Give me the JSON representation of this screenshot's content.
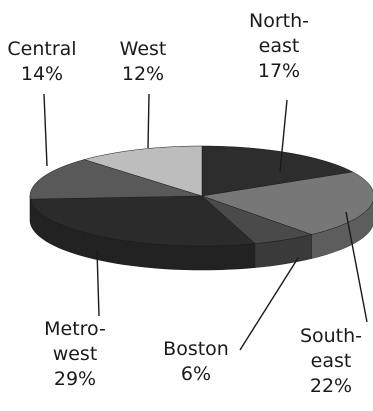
{
  "chart_data": {
    "type": "pie",
    "style": "3d-exploded-none",
    "title": "",
    "slices": [
      {
        "label_lines": [
          "North-",
          "east"
        ],
        "value": 17,
        "value_text": "17%",
        "color": "#2d2d2d"
      },
      {
        "label_lines": [
          "South-",
          "east"
        ],
        "value": 22,
        "value_text": "22%",
        "color": "#777777"
      },
      {
        "label_lines": [
          "Boston"
        ],
        "value": 6,
        "value_text": "6%",
        "color": "#4a4a4a"
      },
      {
        "label_lines": [
          "Metro-",
          "west"
        ],
        "value": 29,
        "value_text": "29%",
        "color": "#2b2b2b"
      },
      {
        "label_lines": [
          "Central"
        ],
        "value": 14,
        "value_text": "14%",
        "color": "#595959"
      },
      {
        "label_lines": [
          "West"
        ],
        "value": 12,
        "value_text": "12%",
        "color": "#bdbdbd"
      }
    ],
    "legend": "none",
    "labels_position": "outside-with-leader-lines"
  }
}
